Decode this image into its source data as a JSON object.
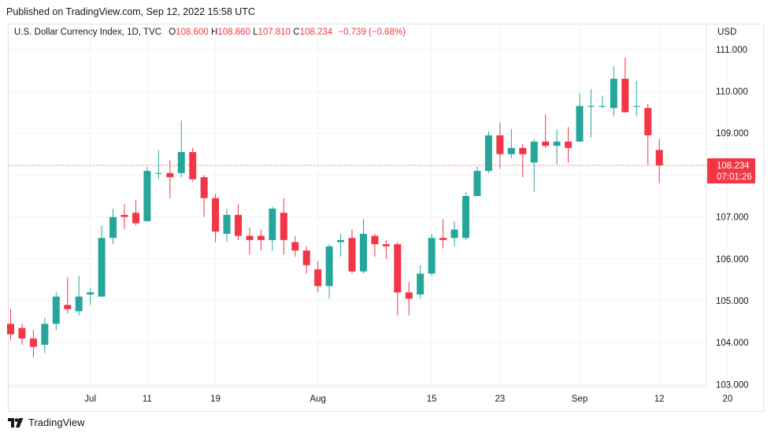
{
  "header": {
    "published": "Published on TradingView.com, Sep 12, 2022 15:58 UTC"
  },
  "legend": {
    "symbol": "U.S. Dollar Currency Index, 1D, TVC",
    "o_label": "O",
    "o": "108.600",
    "h_label": "H",
    "h": "108.860",
    "l_label": "L",
    "l": "107.810",
    "c_label": "C",
    "c": "108.234",
    "change": "−0.739 (−0.68%)"
  },
  "footer": {
    "brand": "TradingView"
  },
  "colors": {
    "up": "#26a69a",
    "down": "#f23645",
    "grid": "#f0f3fa",
    "text": "#131722"
  },
  "chart_data": {
    "type": "candlestick",
    "title": "U.S. Dollar Currency Index, 1D, TVC",
    "ylabel": "USD",
    "ylim": [
      103.0,
      111.5
    ],
    "y_ticks": [
      "103.000",
      "104.000",
      "105.000",
      "106.000",
      "107.000",
      "108.000",
      "109.000",
      "110.000",
      "111.000"
    ],
    "x_tick_labels": [
      "Jul",
      "11",
      "19",
      "Aug",
      "15",
      "23",
      "Sep",
      "12",
      "20"
    ],
    "last_price": "108.234",
    "countdown": "07:01:26",
    "candles": [
      {
        "date": "Jun 22",
        "o": 104.45,
        "h": 104.8,
        "l": 104.05,
        "c": 104.2
      },
      {
        "date": "Jun 23",
        "o": 104.35,
        "h": 104.45,
        "l": 103.95,
        "c": 104.1
      },
      {
        "date": "Jun 24",
        "o": 104.1,
        "h": 104.3,
        "l": 103.65,
        "c": 103.9
      },
      {
        "date": "Jun 27",
        "o": 103.95,
        "h": 104.6,
        "l": 103.75,
        "c": 104.45
      },
      {
        "date": "Jun 28",
        "o": 104.45,
        "h": 105.2,
        "l": 104.3,
        "c": 105.1
      },
      {
        "date": "Jun 29",
        "o": 104.9,
        "h": 105.55,
        "l": 104.7,
        "c": 104.8
      },
      {
        "date": "Jun 30",
        "o": 104.75,
        "h": 105.6,
        "l": 104.65,
        "c": 105.1
      },
      {
        "date": "Jul 1",
        "o": 105.15,
        "h": 105.3,
        "l": 104.9,
        "c": 105.2
      },
      {
        "date": "Jul 5",
        "o": 105.1,
        "h": 106.8,
        "l": 105.1,
        "c": 106.5
      },
      {
        "date": "Jul 6",
        "o": 106.5,
        "h": 107.2,
        "l": 106.35,
        "c": 107.0
      },
      {
        "date": "Jul 7",
        "o": 107.05,
        "h": 107.3,
        "l": 106.7,
        "c": 107.0
      },
      {
        "date": "Jul 8",
        "o": 107.1,
        "h": 107.4,
        "l": 106.8,
        "c": 106.85
      },
      {
        "date": "Jul 11",
        "o": 106.9,
        "h": 108.2,
        "l": 106.9,
        "c": 108.1
      },
      {
        "date": "Jul 12",
        "o": 108.05,
        "h": 108.6,
        "l": 107.9,
        "c": 108.05
      },
      {
        "date": "Jul 13",
        "o": 108.05,
        "h": 108.35,
        "l": 107.45,
        "c": 107.95
      },
      {
        "date": "Jul 14",
        "o": 108.05,
        "h": 109.3,
        "l": 107.95,
        "c": 108.55
      },
      {
        "date": "Jul 15",
        "o": 108.55,
        "h": 108.65,
        "l": 107.85,
        "c": 107.9
      },
      {
        "date": "Jul 18",
        "o": 107.95,
        "h": 108.0,
        "l": 107.0,
        "c": 107.45
      },
      {
        "date": "Jul 19",
        "o": 107.45,
        "h": 107.55,
        "l": 106.4,
        "c": 106.65
      },
      {
        "date": "Jul 20",
        "o": 106.6,
        "h": 107.2,
        "l": 106.4,
        "c": 107.05
      },
      {
        "date": "Jul 21",
        "o": 107.05,
        "h": 107.3,
        "l": 106.45,
        "c": 106.55
      },
      {
        "date": "Jul 22",
        "o": 106.55,
        "h": 106.75,
        "l": 106.1,
        "c": 106.45
      },
      {
        "date": "Jul 25",
        "o": 106.55,
        "h": 106.7,
        "l": 106.2,
        "c": 106.45
      },
      {
        "date": "Jul 26",
        "o": 106.45,
        "h": 107.25,
        "l": 106.2,
        "c": 107.2
      },
      {
        "date": "Jul 27",
        "o": 107.1,
        "h": 107.45,
        "l": 106.1,
        "c": 106.45
      },
      {
        "date": "Jul 28",
        "o": 106.4,
        "h": 106.55,
        "l": 106.05,
        "c": 106.2
      },
      {
        "date": "Jul 29",
        "o": 106.2,
        "h": 106.3,
        "l": 105.65,
        "c": 105.85
      },
      {
        "date": "Aug 1",
        "o": 105.75,
        "h": 105.95,
        "l": 105.2,
        "c": 105.35
      },
      {
        "date": "Aug 2",
        "o": 105.35,
        "h": 106.35,
        "l": 105.05,
        "c": 106.3
      },
      {
        "date": "Aug 3",
        "o": 106.4,
        "h": 106.6,
        "l": 106.05,
        "c": 106.45
      },
      {
        "date": "Aug 4",
        "o": 106.5,
        "h": 106.7,
        "l": 105.65,
        "c": 105.7
      },
      {
        "date": "Aug 5",
        "o": 105.7,
        "h": 106.95,
        "l": 105.65,
        "c": 106.6
      },
      {
        "date": "Aug 8",
        "o": 106.55,
        "h": 106.6,
        "l": 106.05,
        "c": 106.35
      },
      {
        "date": "Aug 9",
        "o": 106.35,
        "h": 106.45,
        "l": 106.0,
        "c": 106.3
      },
      {
        "date": "Aug 10",
        "o": 106.35,
        "h": 106.4,
        "l": 104.65,
        "c": 105.2
      },
      {
        "date": "Aug 11",
        "o": 105.2,
        "h": 105.45,
        "l": 104.65,
        "c": 105.05
      },
      {
        "date": "Aug 12",
        "o": 105.15,
        "h": 105.85,
        "l": 105.05,
        "c": 105.65
      },
      {
        "date": "Aug 15",
        "o": 105.65,
        "h": 106.6,
        "l": 105.6,
        "c": 106.5
      },
      {
        "date": "Aug 16",
        "o": 106.5,
        "h": 106.95,
        "l": 106.25,
        "c": 106.45
      },
      {
        "date": "Aug 17",
        "o": 106.5,
        "h": 106.9,
        "l": 106.3,
        "c": 106.7
      },
      {
        "date": "Aug 18",
        "o": 106.5,
        "h": 107.6,
        "l": 106.45,
        "c": 107.5
      },
      {
        "date": "Aug 19",
        "o": 107.5,
        "h": 108.2,
        "l": 107.5,
        "c": 108.1
      },
      {
        "date": "Aug 22",
        "o": 108.1,
        "h": 109.05,
        "l": 108.05,
        "c": 108.95
      },
      {
        "date": "Aug 23",
        "o": 108.95,
        "h": 109.25,
        "l": 108.15,
        "c": 108.5
      },
      {
        "date": "Aug 24",
        "o": 108.5,
        "h": 109.1,
        "l": 108.4,
        "c": 108.65
      },
      {
        "date": "Aug 25",
        "o": 108.65,
        "h": 108.75,
        "l": 107.95,
        "c": 108.5
      },
      {
        "date": "Aug 26",
        "o": 108.3,
        "h": 108.85,
        "l": 107.6,
        "c": 108.8
      },
      {
        "date": "Aug 29",
        "o": 108.8,
        "h": 109.45,
        "l": 108.65,
        "c": 108.7
      },
      {
        "date": "Aug 30",
        "o": 108.7,
        "h": 109.1,
        "l": 108.25,
        "c": 108.8
      },
      {
        "date": "Aug 31",
        "o": 108.8,
        "h": 109.15,
        "l": 108.3,
        "c": 108.65
      },
      {
        "date": "Sep 1",
        "o": 108.8,
        "h": 109.95,
        "l": 108.8,
        "c": 109.65
      },
      {
        "date": "Sep 2",
        "o": 109.65,
        "h": 110.05,
        "l": 108.9,
        "c": 109.65
      },
      {
        "date": "Sep 5",
        "o": 109.65,
        "h": 109.9,
        "l": 109.6,
        "c": 109.65
      },
      {
        "date": "Sep 6",
        "o": 109.6,
        "h": 110.6,
        "l": 109.4,
        "c": 110.3
      },
      {
        "date": "Sep 7",
        "o": 110.3,
        "h": 110.8,
        "l": 109.5,
        "c": 109.5
      },
      {
        "date": "Sep 8",
        "o": 109.65,
        "h": 110.25,
        "l": 109.4,
        "c": 109.65
      },
      {
        "date": "Sep 9",
        "o": 109.6,
        "h": 109.7,
        "l": 108.25,
        "c": 108.95
      },
      {
        "date": "Sep 12",
        "o": 108.6,
        "h": 108.86,
        "l": 107.81,
        "c": 108.234
      }
    ],
    "x_tick_dates": [
      "Jul 1",
      "Jul 11",
      "Jul 19",
      "Aug 1",
      "Aug 15",
      "Aug 23",
      "Sep 1",
      "Sep 12",
      "Sep 20"
    ]
  }
}
